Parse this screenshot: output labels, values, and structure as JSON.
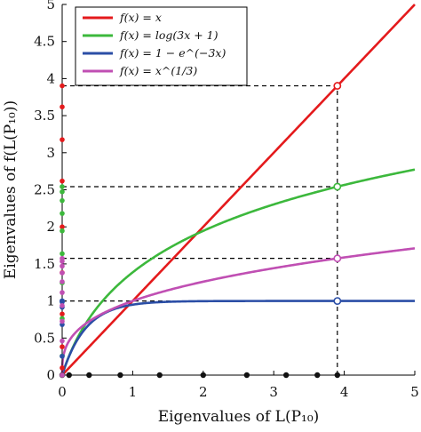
{
  "chart_data": {
    "type": "line",
    "xlabel_prefix": "Eigenvalues of",
    "xlabel_math": "L(P₁₀)",
    "ylabel_prefix": "Eigenvalues of",
    "ylabel_math": "f(L(P₁₀))",
    "xlim": [
      0,
      5
    ],
    "ylim": [
      0,
      5
    ],
    "x_ticks": [
      "0",
      "1",
      "2",
      "3",
      "4",
      "5"
    ],
    "y_ticks": [
      "0",
      "0.5",
      "1",
      "1.5",
      "2",
      "2.5",
      "3",
      "3.5",
      "4",
      "4.5",
      "5"
    ],
    "grid": false,
    "legend_position": "top-left",
    "series": [
      {
        "name": "f(x) = x",
        "color": "#e41a1c",
        "function": "x"
      },
      {
        "name": "f(x) = log(3x + 1)",
        "color": "#3cb83c",
        "function": "log(3x+1)"
      },
      {
        "name": "f(x) = 1 − e^(−3x)",
        "color": "#2b4ea6",
        "function": "1-exp(-3x)"
      },
      {
        "name": "f(x) = x^(1/3)",
        "color": "#c04fb3",
        "function": "x^(1/3)"
      }
    ],
    "eigenvalues": [
      0,
      0.0979,
      0.382,
      0.824,
      1.382,
      2.0,
      2.618,
      3.176,
      3.618,
      3.902
    ],
    "marked_eigenvalue": 3.902,
    "marked_values": [
      3.902,
      2.542,
      1.575,
      1.0
    ],
    "colors": {
      "axis": "#000000",
      "eigen_dot": "#111111",
      "dashed_line": "#000000"
    }
  }
}
